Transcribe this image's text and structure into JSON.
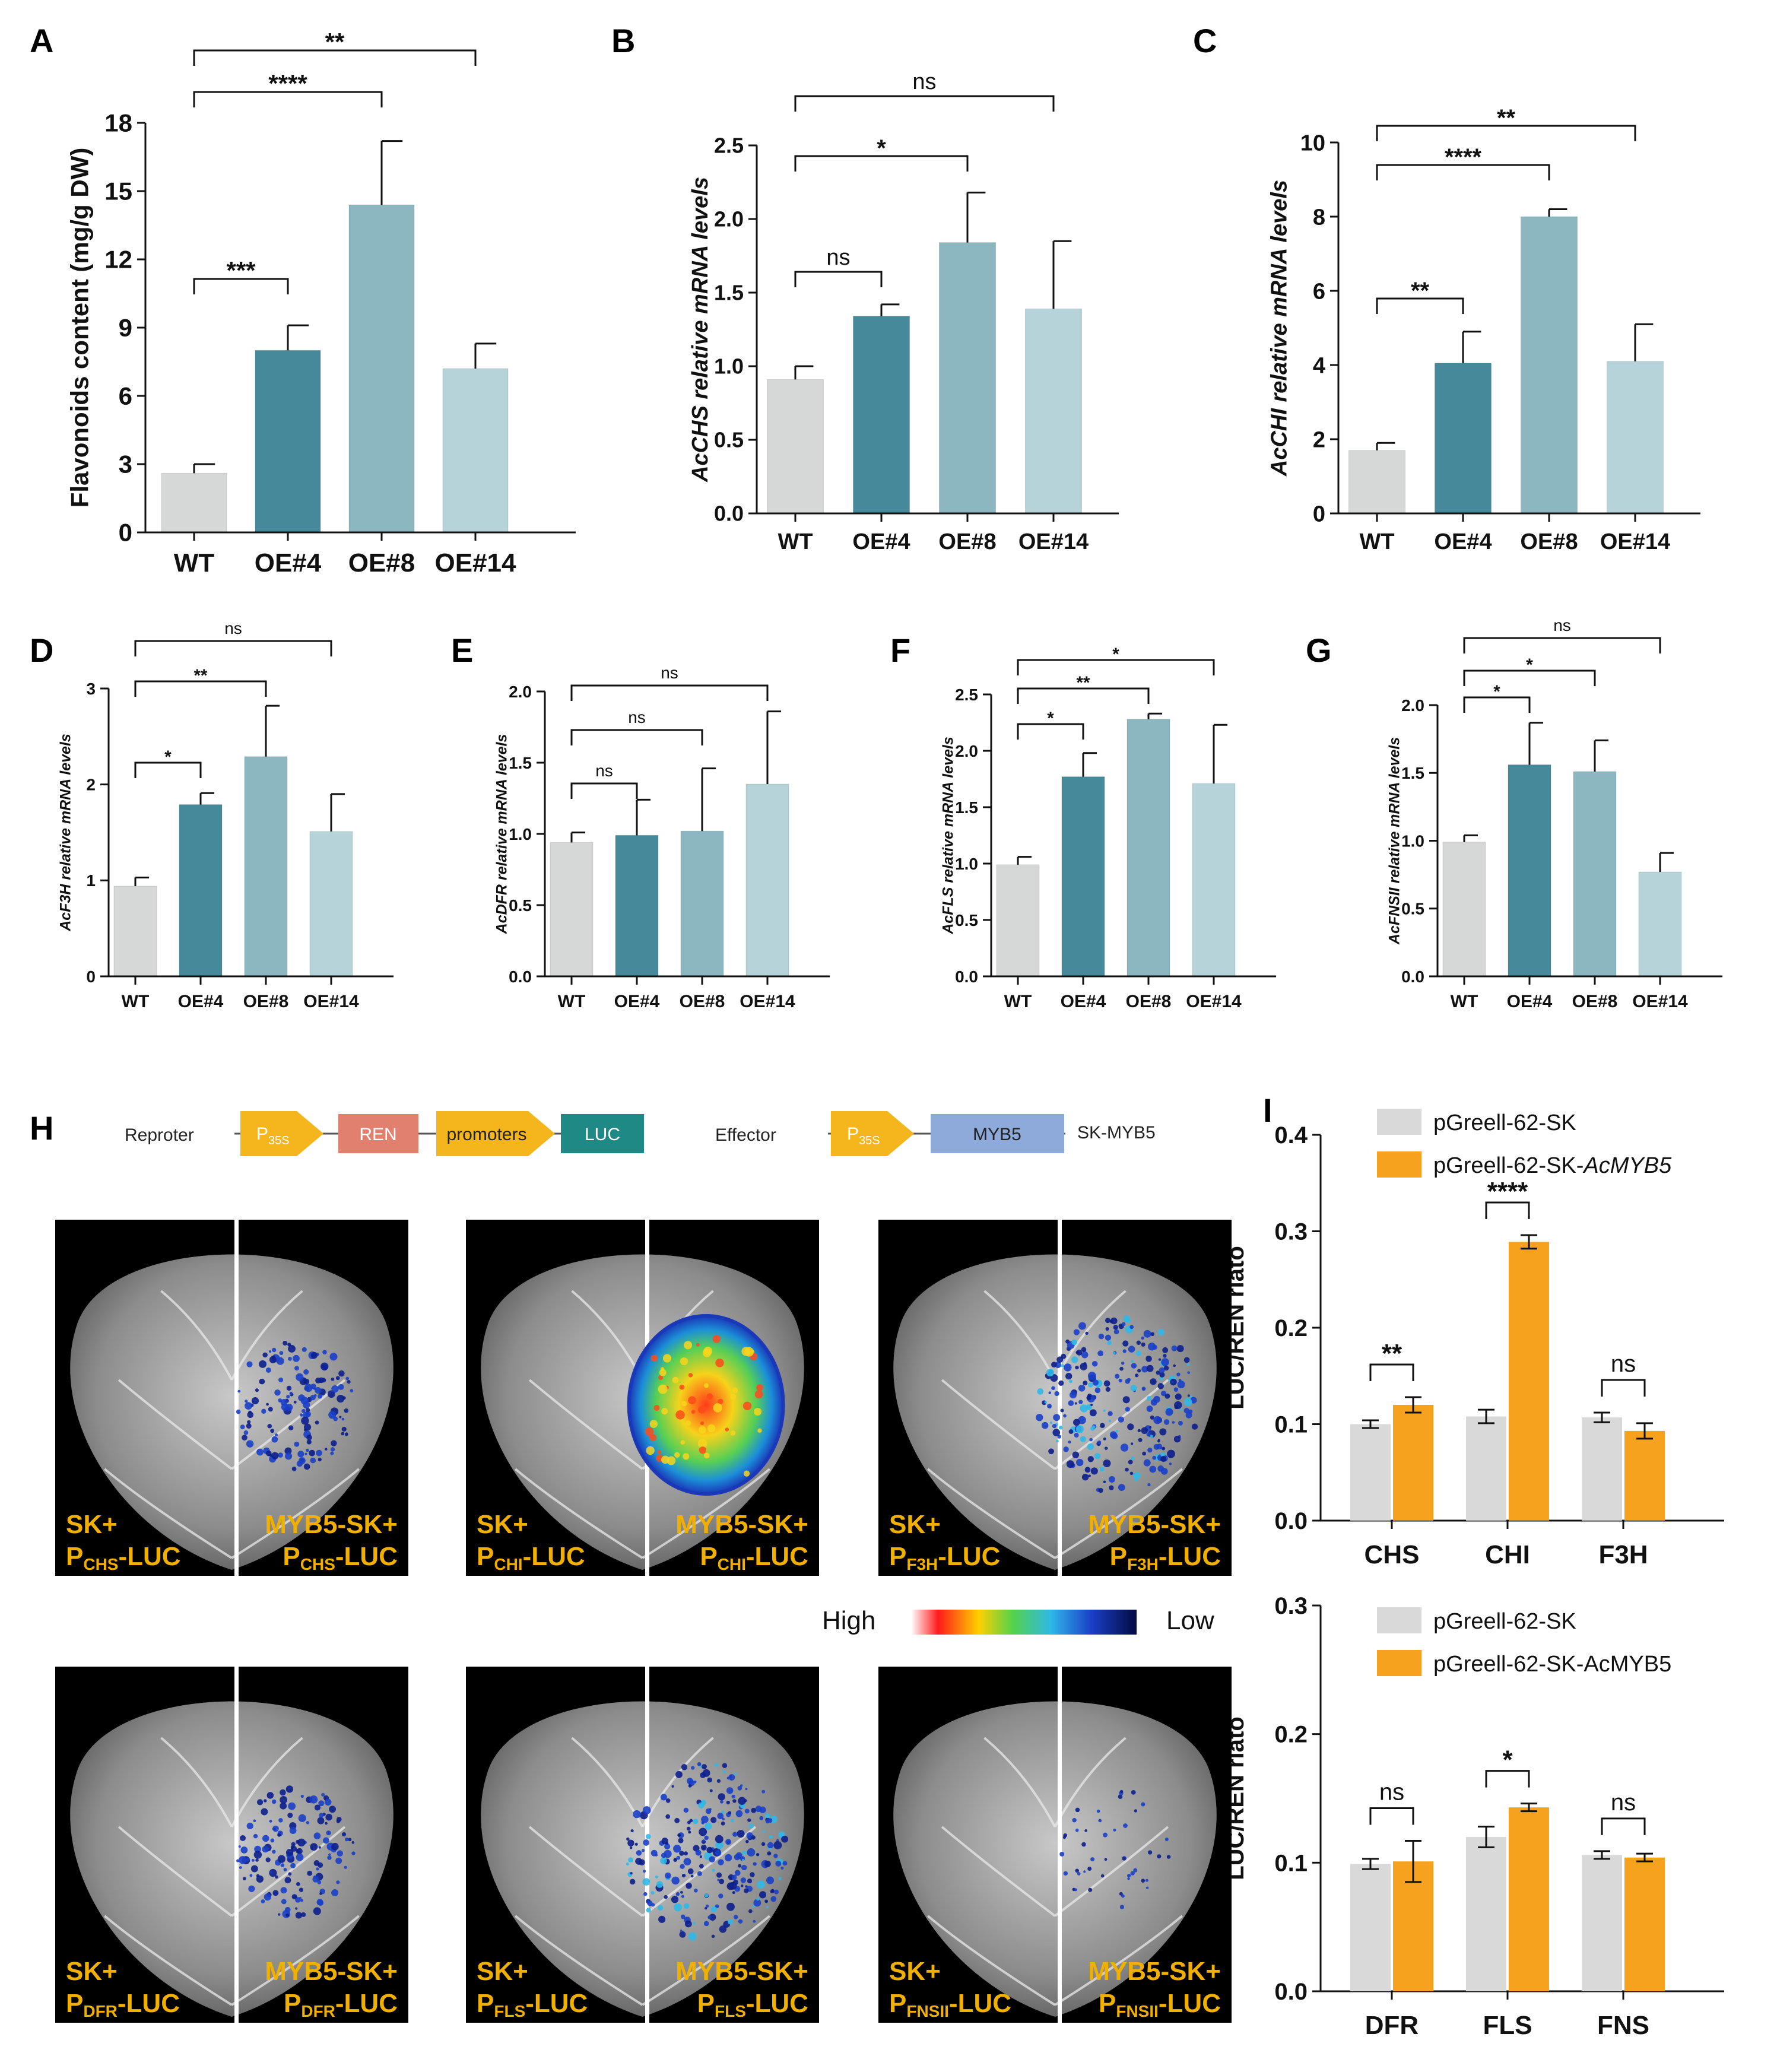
{
  "colors": {
    "WT": "#d6d8d8",
    "OE4": "#46899a",
    "OE8": "#8cb7c0",
    "OE14": "#b6d3d9",
    "ctrl": "#d9d9d9",
    "myb5": "#f6a21e",
    "label_yellow": "#f1b000"
  },
  "categories": [
    "WT",
    "OE#4",
    "OE#8",
    "OE#14"
  ],
  "chart_data": [
    {
      "id": "A",
      "type": "bar",
      "categories": [
        "WT",
        "OE#4",
        "OE#8",
        "OE#14"
      ],
      "values": [
        2.6,
        8.0,
        14.4,
        7.2
      ],
      "errors": [
        0.4,
        1.1,
        2.8,
        1.1
      ],
      "ylabel": "Flavonoids content (mg/g DW)",
      "ylabel_italic": false,
      "ylim": [
        0,
        18
      ],
      "yticks": [
        "0",
        "3",
        "6",
        "9",
        "12",
        "15",
        "18"
      ],
      "sig": [
        {
          "from": 0,
          "to": 1,
          "label": "***"
        },
        {
          "from": 0,
          "to": 2,
          "label": "****"
        },
        {
          "from": 0,
          "to": 3,
          "label": "**"
        }
      ]
    },
    {
      "id": "B",
      "type": "bar",
      "categories": [
        "WT",
        "OE#4",
        "OE#8",
        "OE#14"
      ],
      "values": [
        0.91,
        1.34,
        1.84,
        1.39
      ],
      "errors": [
        0.09,
        0.08,
        0.34,
        0.46
      ],
      "ylabel": "AcCHS relative mRNA levels",
      "ylabel_italic": true,
      "ylim": [
        0,
        2.5
      ],
      "yticks": [
        "0.0",
        "0.5",
        "1.0",
        "1.5",
        "2.0",
        "2.5"
      ],
      "sig": [
        {
          "from": 0,
          "to": 1,
          "label": "ns"
        },
        {
          "from": 0,
          "to": 2,
          "label": "*"
        },
        {
          "from": 0,
          "to": 3,
          "label": "ns"
        }
      ]
    },
    {
      "id": "C",
      "type": "bar",
      "categories": [
        "WT",
        "OE#4",
        "OE#8",
        "OE#14"
      ],
      "values": [
        1.7,
        4.05,
        8.0,
        4.1
      ],
      "errors": [
        0.2,
        0.85,
        0.2,
        1.0
      ],
      "ylabel": "AcCHI relative mRNA levels",
      "ylabel_italic": true,
      "ylim": [
        0,
        10
      ],
      "yticks": [
        "0",
        "2",
        "4",
        "6",
        "8",
        "10"
      ],
      "sig": [
        {
          "from": 0,
          "to": 1,
          "label": "**"
        },
        {
          "from": 0,
          "to": 2,
          "label": "****"
        },
        {
          "from": 0,
          "to": 3,
          "label": "**"
        }
      ]
    },
    {
      "id": "D",
      "type": "bar",
      "categories": [
        "WT",
        "OE#4",
        "OE#8",
        "OE#14"
      ],
      "values": [
        0.94,
        1.79,
        2.29,
        1.51
      ],
      "errors": [
        0.09,
        0.12,
        0.53,
        0.39
      ],
      "ylabel": "AcF3H relative mRNA levels",
      "ylabel_italic": true,
      "ylim": [
        0,
        3
      ],
      "yticks": [
        "0",
        "1",
        "2",
        "3"
      ],
      "sig": [
        {
          "from": 0,
          "to": 1,
          "label": "*"
        },
        {
          "from": 0,
          "to": 2,
          "label": "**"
        },
        {
          "from": 0,
          "to": 3,
          "label": "ns"
        }
      ]
    },
    {
      "id": "E",
      "type": "bar",
      "categories": [
        "WT",
        "OE#4",
        "OE#8",
        "OE#14"
      ],
      "values": [
        0.94,
        0.99,
        1.02,
        1.35
      ],
      "errors": [
        0.07,
        0.25,
        0.44,
        0.51
      ],
      "ylabel": "AcDFR relative mRNA levels",
      "ylabel_italic": true,
      "ylim": [
        0,
        2.0
      ],
      "yticks": [
        "0.0",
        "0.5",
        "1.0",
        "1.5",
        "2.0"
      ],
      "sig": [
        {
          "from": 0,
          "to": 1,
          "label": "ns"
        },
        {
          "from": 0,
          "to": 2,
          "label": "ns"
        },
        {
          "from": 0,
          "to": 3,
          "label": "ns"
        }
      ]
    },
    {
      "id": "F",
      "type": "bar",
      "categories": [
        "WT",
        "OE#4",
        "OE#8",
        "OE#14"
      ],
      "values": [
        0.99,
        1.77,
        2.28,
        1.71
      ],
      "errors": [
        0.07,
        0.21,
        0.05,
        0.52
      ],
      "ylabel": "AcFLS relative mRNA levels",
      "ylabel_italic": true,
      "ylim": [
        0,
        2.5
      ],
      "yticks": [
        "0.0",
        "0.5",
        "1.0",
        "1.5",
        "2.0",
        "2.5"
      ],
      "sig": [
        {
          "from": 0,
          "to": 1,
          "label": "*"
        },
        {
          "from": 0,
          "to": 2,
          "label": "**"
        },
        {
          "from": 0,
          "to": 3,
          "label": "*"
        }
      ]
    },
    {
      "id": "G",
      "type": "bar",
      "categories": [
        "WT",
        "OE#4",
        "OE#8",
        "OE#14"
      ],
      "values": [
        0.99,
        1.56,
        1.51,
        0.77
      ],
      "errors": [
        0.05,
        0.31,
        0.23,
        0.14
      ],
      "ylabel": "AcFNSII relative mRNA levels",
      "ylabel_italic": true,
      "ylim": [
        0,
        2.0
      ],
      "yticks": [
        "0.0",
        "0.5",
        "1.0",
        "1.5",
        "2.0"
      ],
      "sig": [
        {
          "from": 0,
          "to": 1,
          "label": "*"
        },
        {
          "from": 0,
          "to": 2,
          "label": "*"
        },
        {
          "from": 0,
          "to": 3,
          "label": "ns"
        }
      ]
    },
    {
      "id": "I1",
      "type": "bar",
      "categories": [
        "CHS",
        "CHI",
        "F3H"
      ],
      "series": [
        {
          "name": "pGreell-62-SK",
          "values": [
            0.1,
            0.108,
            0.107
          ],
          "errors": [
            0.004,
            0.007,
            0.005
          ]
        },
        {
          "name": "pGreell-62-SK-AcMYB5",
          "values": [
            0.12,
            0.289,
            0.093
          ],
          "errors": [
            0.008,
            0.007,
            0.008
          ]
        }
      ],
      "legend": [
        {
          "text": "pGreell-62-SK",
          "italic_part": ""
        },
        {
          "text": "pGreell-62-SK-",
          "italic_part": "AcMYB5"
        }
      ],
      "ylabel": "LUC/REN riato",
      "ylim": [
        0,
        0.4
      ],
      "yticks": [
        "0.0",
        "0.1",
        "0.2",
        "0.3",
        "0.4"
      ],
      "sig": [
        "**",
        "****",
        "ns"
      ]
    },
    {
      "id": "I2",
      "type": "bar",
      "categories": [
        "DFR",
        "FLS",
        "FNS"
      ],
      "series": [
        {
          "name": "pGreell-62-SK",
          "values": [
            0.099,
            0.12,
            0.106
          ],
          "errors": [
            0.004,
            0.008,
            0.003
          ]
        },
        {
          "name": "pGreell-62-SK-AcMYB5",
          "values": [
            0.101,
            0.143,
            0.104
          ],
          "errors": [
            0.016,
            0.003,
            0.003
          ]
        }
      ],
      "legend": [
        {
          "text": "pGreell-62-SK",
          "italic_part": ""
        },
        {
          "text": "pGreell-62-SK-AcMYB5",
          "italic_part": ""
        }
      ],
      "ylabel": "LUC/REN riato",
      "ylim": [
        0,
        0.3
      ],
      "yticks": [
        "0.0",
        "0.1",
        "0.2",
        "0.3"
      ],
      "sig": [
        "ns",
        "*",
        "ns"
      ]
    }
  ],
  "construct": {
    "reporter_label": "Reproter",
    "p35s_main": "P",
    "p35s_sub": "35S",
    "ren": "REN",
    "promoters": "promoters",
    "luc": "LUC",
    "effector_label": "Effector",
    "myb5": "MYB5",
    "sk_myb5": "SK-MYB5"
  },
  "leaves": [
    {
      "left_line1": "SK+",
      "left_p": "P",
      "left_sub": "CHS",
      "left_end": "-LUC",
      "right_line1": "MYB5-SK+",
      "right_p": "P",
      "right_sub": "CHS",
      "right_end": "-LUC",
      "signal": "low"
    },
    {
      "left_line1": "SK+",
      "left_p": "P",
      "left_sub": "CHI",
      "left_end": "-LUC",
      "right_line1": "MYB5-SK+",
      "right_p": "P",
      "right_sub": "CHI",
      "right_end": "-LUC",
      "signal": "high"
    },
    {
      "left_line1": "SK+",
      "left_p": "P",
      "left_sub": "F3H",
      "left_end": "-LUC",
      "right_line1": "MYB5-SK+",
      "right_p": "P",
      "right_sub": "F3H",
      "right_end": "-LUC",
      "signal": "medium"
    },
    {
      "left_line1": "SK+",
      "left_p": "P",
      "left_sub": "DFR",
      "left_end": "-LUC",
      "right_line1": "MYB5-SK+",
      "right_p": "P",
      "right_sub": "DFR",
      "right_end": "-LUC",
      "signal": "low"
    },
    {
      "left_line1": "SK+",
      "left_p": "P",
      "left_sub": "FLS",
      "left_end": "-LUC",
      "right_line1": "MYB5-SK+",
      "right_p": "P",
      "right_sub": "FLS",
      "right_end": "-LUC",
      "signal": "medium"
    },
    {
      "left_line1": "SK+",
      "left_p": "P",
      "left_sub": "FNSII",
      "left_end": "-LUC",
      "right_line1": "MYB5-SK+",
      "right_p": "P",
      "right_sub": "FNSII",
      "right_end": "-LUC",
      "signal": "faint"
    }
  ],
  "colorscale": {
    "high": "High",
    "low": "Low"
  },
  "panel_letters": {
    "A": "A",
    "B": "B",
    "C": "C",
    "D": "D",
    "E": "E",
    "F": "F",
    "G": "G",
    "H": "H",
    "I": "I"
  }
}
